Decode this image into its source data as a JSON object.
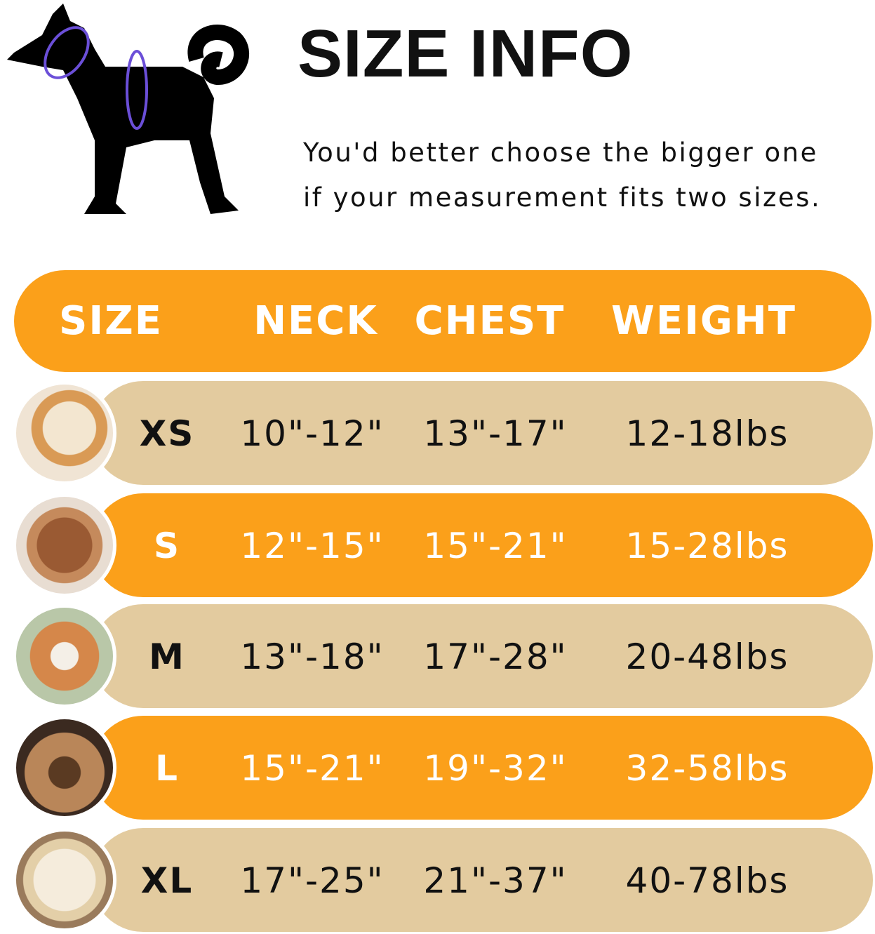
{
  "title": "SIZE INFO",
  "subtitle_line1": "You'd better choose the bigger one",
  "subtitle_line2": "if your measurement fits two sizes.",
  "colors": {
    "orange": "#FBA01A",
    "beige": "#E3CB9F",
    "measure_line": "#6B4FD8"
  },
  "headers": [
    "SIZE",
    "NECK",
    "CHEST",
    "WEIGHT"
  ],
  "rows": [
    {
      "size": "XS",
      "neck": "10\"-12\"",
      "chest": "13\"-17\"",
      "weight": "12-18lbs",
      "photo": "pomeranian-photo"
    },
    {
      "size": "S",
      "neck": "12\"-15\"",
      "chest": "15\"-21\"",
      "weight": "15-28lbs",
      "photo": "poodle-photo"
    },
    {
      "size": "M",
      "neck": "13\"-18\"",
      "chest": "17\"-28\"",
      "weight": "20-48lbs",
      "photo": "shiba-inu-photo"
    },
    {
      "size": "L",
      "neck": "15\"-21\"",
      "chest": "19\"-32\"",
      "weight": "32-58lbs",
      "photo": "french-bulldog-photo"
    },
    {
      "size": "XL",
      "neck": "17\"-25\"",
      "chest": "21\"-37\"",
      "weight": "40-78lbs",
      "photo": "labrador-photo"
    }
  ]
}
